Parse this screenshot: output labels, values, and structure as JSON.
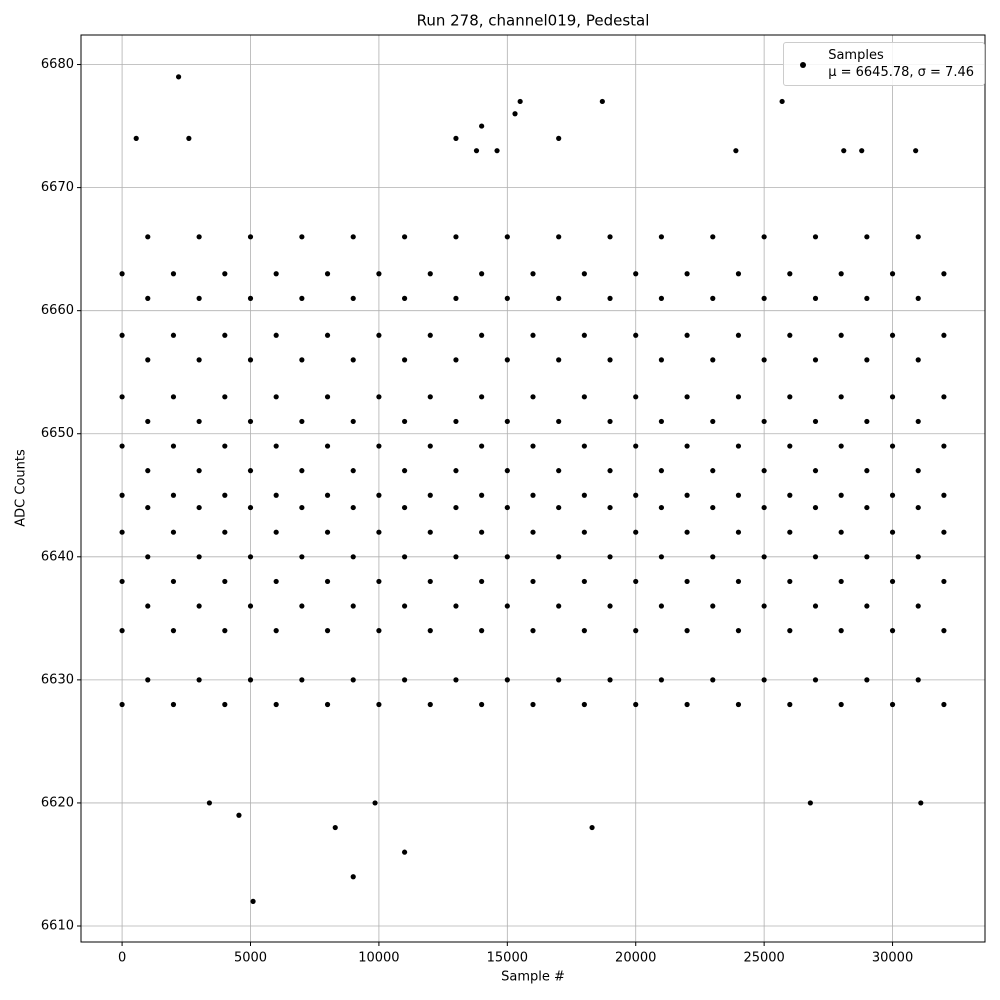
{
  "chart_data": {
    "type": "scatter",
    "title": "Run 278, channel019, Pedestal",
    "xlabel": "Sample #",
    "ylabel": "ADC Counts",
    "xlim": [
      -1600,
      33600
    ],
    "ylim": [
      6608.7,
      6682.4
    ],
    "xticks": [
      0,
      5000,
      10000,
      15000,
      20000,
      25000,
      30000
    ],
    "yticks": [
      6610,
      6620,
      6630,
      6640,
      6650,
      6660,
      6670,
      6680
    ],
    "grid": true,
    "legend": "upper right",
    "series": [
      {
        "name": "Samples\nμ = 6645.78, σ = 7.46",
        "color": "#000000",
        "x": [
          0,
          0,
          0,
          0,
          0,
          0,
          0,
          0,
          0,
          1000,
          1000,
          1000,
          1000,
          1000,
          1000,
          1000,
          1000,
          1000,
          2000,
          2000,
          2000,
          2000,
          2000,
          2000,
          2000,
          2000,
          2000,
          3000,
          3000,
          3000,
          3000,
          3000,
          3000,
          3000,
          3000,
          3000,
          4000,
          4000,
          4000,
          4000,
          4000,
          4000,
          4000,
          4000,
          4000,
          5000,
          5000,
          5000,
          5000,
          5000,
          5000,
          5000,
          5000,
          5000,
          6000,
          6000,
          6000,
          6000,
          6000,
          6000,
          6000,
          6000,
          6000,
          7000,
          7000,
          7000,
          7000,
          7000,
          7000,
          7000,
          7000,
          7000,
          8000,
          8000,
          8000,
          8000,
          8000,
          8000,
          8000,
          8000,
          8000,
          9000,
          9000,
          9000,
          9000,
          9000,
          9000,
          9000,
          9000,
          9000,
          10000,
          10000,
          10000,
          10000,
          10000,
          10000,
          10000,
          10000,
          10000,
          11000,
          11000,
          11000,
          11000,
          11000,
          11000,
          11000,
          11000,
          11000,
          12000,
          12000,
          12000,
          12000,
          12000,
          12000,
          12000,
          12000,
          12000,
          13000,
          13000,
          13000,
          13000,
          13000,
          13000,
          13000,
          13000,
          13000,
          14000,
          14000,
          14000,
          14000,
          14000,
          14000,
          14000,
          14000,
          14000,
          15000,
          15000,
          15000,
          15000,
          15000,
          15000,
          15000,
          15000,
          15000,
          16000,
          16000,
          16000,
          16000,
          16000,
          16000,
          16000,
          16000,
          16000,
          17000,
          17000,
          17000,
          17000,
          17000,
          17000,
          17000,
          17000,
          17000,
          18000,
          18000,
          18000,
          18000,
          18000,
          18000,
          18000,
          18000,
          18000,
          19000,
          19000,
          19000,
          19000,
          19000,
          19000,
          19000,
          19000,
          19000,
          20000,
          20000,
          20000,
          20000,
          20000,
          20000,
          20000,
          20000,
          20000,
          21000,
          21000,
          21000,
          21000,
          21000,
          21000,
          21000,
          21000,
          21000,
          22000,
          22000,
          22000,
          22000,
          22000,
          22000,
          22000,
          22000,
          22000,
          23000,
          23000,
          23000,
          23000,
          23000,
          23000,
          23000,
          23000,
          23000,
          24000,
          24000,
          24000,
          24000,
          24000,
          24000,
          24000,
          24000,
          24000,
          25000,
          25000,
          25000,
          25000,
          25000,
          25000,
          25000,
          25000,
          25000,
          26000,
          26000,
          26000,
          26000,
          26000,
          26000,
          26000,
          26000,
          26000,
          27000,
          27000,
          27000,
          27000,
          27000,
          27000,
          27000,
          27000,
          27000,
          28000,
          28000,
          28000,
          28000,
          28000,
          28000,
          28000,
          28000,
          28000,
          29000,
          29000,
          29000,
          29000,
          29000,
          29000,
          29000,
          29000,
          29000,
          30000,
          30000,
          30000,
          30000,
          30000,
          30000,
          30000,
          30000,
          30000,
          31000,
          31000,
          31000,
          31000,
          31000,
          31000,
          31000,
          31000,
          31000,
          32000,
          32000,
          32000,
          32000,
          32000,
          32000,
          32000,
          32000,
          32000,
          2200,
          5100,
          9000,
          11000,
          8300,
          18300,
          4550,
          3400,
          9850,
          26800,
          31100,
          15500,
          18700,
          25700,
          15300,
          14000,
          13000,
          17000,
          2600,
          550,
          30900,
          28800,
          28100,
          23900,
          14600,
          13800
        ],
        "values": [
          6628,
          6634,
          6638,
          6642,
          6645,
          6649,
          6653,
          6658,
          6663,
          6630,
          6636,
          6640,
          6644,
          6647,
          6651,
          6656,
          6661,
          6666,
          6628,
          6634,
          6638,
          6642,
          6645,
          6649,
          6653,
          6658,
          6663,
          6630,
          6636,
          6640,
          6644,
          6647,
          6651,
          6656,
          6661,
          6666,
          6628,
          6634,
          6638,
          6642,
          6645,
          6649,
          6653,
          6658,
          6663,
          6630,
          6636,
          6640,
          6644,
          6647,
          6651,
          6656,
          6661,
          6666,
          6628,
          6634,
          6638,
          6642,
          6645,
          6649,
          6653,
          6658,
          6663,
          6630,
          6636,
          6640,
          6644,
          6647,
          6651,
          6656,
          6661,
          6666,
          6628,
          6634,
          6638,
          6642,
          6645,
          6649,
          6653,
          6658,
          6663,
          6630,
          6636,
          6640,
          6644,
          6647,
          6651,
          6656,
          6661,
          6666,
          6628,
          6634,
          6638,
          6642,
          6645,
          6649,
          6653,
          6658,
          6663,
          6630,
          6636,
          6640,
          6644,
          6647,
          6651,
          6656,
          6661,
          6666,
          6628,
          6634,
          6638,
          6642,
          6645,
          6649,
          6653,
          6658,
          6663,
          6630,
          6636,
          6640,
          6644,
          6647,
          6651,
          6656,
          6661,
          6666,
          6628,
          6634,
          6638,
          6642,
          6645,
          6649,
          6653,
          6658,
          6663,
          6630,
          6636,
          6640,
          6644,
          6647,
          6651,
          6656,
          6661,
          6666,
          6628,
          6634,
          6638,
          6642,
          6645,
          6649,
          6653,
          6658,
          6663,
          6630,
          6636,
          6640,
          6644,
          6647,
          6651,
          6656,
          6661,
          6666,
          6628,
          6634,
          6638,
          6642,
          6645,
          6649,
          6653,
          6658,
          6663,
          6630,
          6636,
          6640,
          6644,
          6647,
          6651,
          6656,
          6661,
          6666,
          6628,
          6634,
          6638,
          6642,
          6645,
          6649,
          6653,
          6658,
          6663,
          6630,
          6636,
          6640,
          6644,
          6647,
          6651,
          6656,
          6661,
          6666,
          6628,
          6634,
          6638,
          6642,
          6645,
          6649,
          6653,
          6658,
          6663,
          6630,
          6636,
          6640,
          6644,
          6647,
          6651,
          6656,
          6661,
          6666,
          6628,
          6634,
          6638,
          6642,
          6645,
          6649,
          6653,
          6658,
          6663,
          6630,
          6636,
          6640,
          6644,
          6647,
          6651,
          6656,
          6661,
          6666,
          6628,
          6634,
          6638,
          6642,
          6645,
          6649,
          6653,
          6658,
          6663,
          6630,
          6636,
          6640,
          6644,
          6647,
          6651,
          6656,
          6661,
          6666,
          6628,
          6634,
          6638,
          6642,
          6645,
          6649,
          6653,
          6658,
          6663,
          6630,
          6636,
          6640,
          6644,
          6647,
          6651,
          6656,
          6661,
          6666,
          6628,
          6634,
          6638,
          6642,
          6645,
          6649,
          6653,
          6658,
          6663,
          6630,
          6636,
          6640,
          6644,
          6647,
          6651,
          6656,
          6661,
          6666,
          6628,
          6634,
          6638,
          6642,
          6645,
          6649,
          6653,
          6658,
          6663,
          6679,
          6612,
          6614,
          6616,
          6618,
          6618,
          6619,
          6620,
          6620,
          6620,
          6620,
          6677,
          6677,
          6677,
          6676,
          6675,
          6674,
          6674,
          6674,
          6674,
          6673,
          6673,
          6673,
          6673,
          6673,
          6673
        ]
      }
    ]
  }
}
